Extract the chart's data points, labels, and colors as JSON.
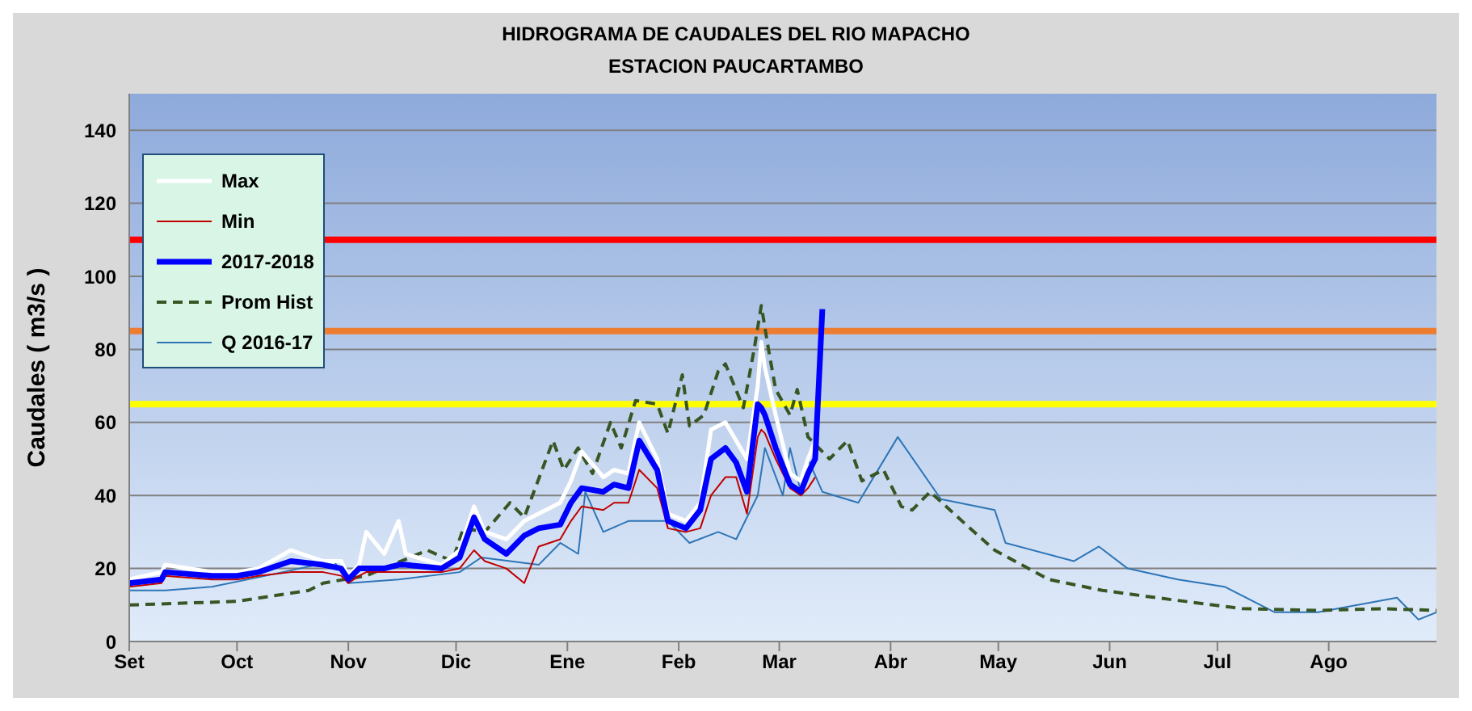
{
  "chart_data": {
    "type": "line",
    "title": "HIDROGRAMA DE CAUDALES DEL RIO  MAPACHO",
    "subtitle": "ESTACION  PAUCARTAMBO",
    "ylabel": "Caudales ( m3/s )",
    "xlim": [
      "2017-09-01",
      "2018-08-31"
    ],
    "xticks": [
      {
        "value": "2017-09-01",
        "label": "Set"
      },
      {
        "value": "2017-10-01",
        "label": "Oct"
      },
      {
        "value": "2017-11-01",
        "label": "Nov"
      },
      {
        "value": "2017-12-01",
        "label": "Dic"
      },
      {
        "value": "2018-01-01",
        "label": "Ene"
      },
      {
        "value": "2018-02-01",
        "label": "Feb"
      },
      {
        "value": "2018-03-01",
        "label": "Mar"
      },
      {
        "value": "2018-04-01",
        "label": "Abr"
      },
      {
        "value": "2018-05-01",
        "label": "May"
      },
      {
        "value": "2018-06-01",
        "label": "Jun"
      },
      {
        "value": "2018-07-01",
        "label": "Jul"
      },
      {
        "value": "2018-08-01",
        "label": "Ago"
      }
    ],
    "ylim": [
      0,
      150
    ],
    "yticks": [
      0,
      20,
      40,
      60,
      80,
      100,
      120,
      140
    ],
    "grid": "y",
    "legend": "top left",
    "marker": "none",
    "line_style": "solid",
    "ref_lines": [
      {
        "axis": "y",
        "value": 110,
        "color": "#ff0000"
      },
      {
        "axis": "y",
        "value": 85,
        "color": "#ed7d31"
      },
      {
        "axis": "y",
        "value": 65,
        "color": "#ffff00"
      }
    ],
    "series": [
      {
        "name": "Max",
        "color": "#ffffff",
        "x": [
          "2017-09-01",
          "2017-09-10",
          "2017-09-11",
          "2017-09-24",
          "2017-10-01",
          "2017-10-07",
          "2017-10-16",
          "2017-10-25",
          "2017-10-30",
          "2017-11-01",
          "2017-11-04",
          "2017-11-06",
          "2017-11-11",
          "2017-11-15",
          "2017-11-17",
          "2017-11-27",
          "2017-12-02",
          "2017-12-06",
          "2017-12-09",
          "2017-12-15",
          "2017-12-20",
          "2017-12-24",
          "2017-12-30",
          "2018-01-02",
          "2018-01-05",
          "2018-01-11",
          "2018-01-14",
          "2018-01-18",
          "2018-01-21",
          "2018-01-26",
          "2018-01-29",
          "2018-02-03",
          "2018-02-07",
          "2018-02-10",
          "2018-02-14",
          "2018-02-17",
          "2018-02-20",
          "2018-02-23",
          "2018-02-24",
          "2018-02-25",
          "2018-02-28",
          "2018-03-04",
          "2018-03-07",
          "2018-03-09",
          "2018-03-11"
        ],
        "values": [
          17,
          19,
          21,
          19,
          19,
          20,
          25,
          22,
          22,
          18,
          21,
          30,
          24,
          33,
          24,
          21,
          25,
          37,
          30,
          28,
          33,
          35,
          38,
          44,
          52,
          45,
          47,
          46,
          60,
          50,
          35,
          33,
          38,
          58,
          60,
          55,
          50,
          70,
          82,
          75,
          62,
          46,
          44,
          50,
          55
        ]
      },
      {
        "name": "Min",
        "color": "#c00000",
        "x": [
          "2017-09-01",
          "2017-09-10",
          "2017-09-11",
          "2017-09-24",
          "2017-10-01",
          "2017-10-07",
          "2017-10-16",
          "2017-10-25",
          "2017-10-30",
          "2017-11-01",
          "2017-11-04",
          "2017-11-06",
          "2017-11-11",
          "2017-11-15",
          "2017-11-17",
          "2017-11-27",
          "2017-12-02",
          "2017-12-06",
          "2017-12-09",
          "2017-12-15",
          "2017-12-20",
          "2017-12-24",
          "2017-12-30",
          "2018-01-02",
          "2018-01-05",
          "2018-01-11",
          "2018-01-14",
          "2018-01-18",
          "2018-01-21",
          "2018-01-26",
          "2018-01-29",
          "2018-02-03",
          "2018-02-07",
          "2018-02-10",
          "2018-02-14",
          "2018-02-17",
          "2018-02-20",
          "2018-02-23",
          "2018-02-24",
          "2018-02-25",
          "2018-02-28",
          "2018-03-04",
          "2018-03-07",
          "2018-03-09",
          "2018-03-11"
        ],
        "values": [
          15,
          16,
          18,
          17,
          17,
          18,
          19,
          19,
          18,
          16,
          18,
          19,
          19,
          19,
          19,
          19,
          20,
          25,
          22,
          20,
          16,
          26,
          28,
          33,
          37,
          36,
          38,
          38,
          47,
          42,
          31,
          30,
          31,
          40,
          45,
          45,
          35,
          56,
          58,
          57,
          50,
          42,
          40,
          42,
          45
        ]
      },
      {
        "name": "2017-2018",
        "color": "#0000ff",
        "x": [
          "2017-09-01",
          "2017-09-10",
          "2017-09-11",
          "2017-09-24",
          "2017-10-01",
          "2017-10-07",
          "2017-10-16",
          "2017-10-25",
          "2017-10-30",
          "2017-11-01",
          "2017-11-04",
          "2017-11-06",
          "2017-11-11",
          "2017-11-15",
          "2017-11-17",
          "2017-11-27",
          "2017-12-02",
          "2017-12-06",
          "2017-12-09",
          "2017-12-15",
          "2017-12-20",
          "2017-12-24",
          "2017-12-30",
          "2018-01-02",
          "2018-01-05",
          "2018-01-11",
          "2018-01-14",
          "2018-01-18",
          "2018-01-21",
          "2018-01-26",
          "2018-01-29",
          "2018-02-03",
          "2018-02-07",
          "2018-02-10",
          "2018-02-14",
          "2018-02-17",
          "2018-02-20",
          "2018-02-23",
          "2018-02-24",
          "2018-02-25",
          "2018-02-28",
          "2018-03-04",
          "2018-03-07",
          "2018-03-09",
          "2018-03-11",
          "2018-03-13"
        ],
        "values": [
          16,
          17,
          19,
          18,
          18,
          19,
          22,
          21,
          20,
          17,
          20,
          20,
          20,
          21,
          21,
          20,
          23,
          34,
          28,
          24,
          29,
          31,
          32,
          38,
          42,
          41,
          43,
          42,
          55,
          47,
          33,
          31,
          36,
          50,
          53,
          49,
          41,
          65,
          64,
          62,
          53,
          43,
          41,
          46,
          50,
          91
        ]
      },
      {
        "name": "Prom Hist",
        "color": "#375623",
        "line_style": "dashed",
        "x": [
          "2017-09-01",
          "2017-10-01",
          "2017-10-21",
          "2017-10-25",
          "2017-11-06",
          "2017-11-23",
          "2017-11-30",
          "2017-12-03",
          "2017-12-09",
          "2017-12-16",
          "2017-12-20",
          "2017-12-28",
          "2017-12-31",
          "2018-01-04",
          "2018-01-08",
          "2018-01-13",
          "2018-01-16",
          "2018-01-20",
          "2018-01-26",
          "2018-01-29",
          "2018-02-02",
          "2018-02-04",
          "2018-02-08",
          "2018-02-12",
          "2018-02-14",
          "2018-02-19",
          "2018-02-22",
          "2018-02-24",
          "2018-02-26",
          "2018-02-28",
          "2018-03-04",
          "2018-03-06",
          "2018-03-09",
          "2018-03-15",
          "2018-03-20",
          "2018-03-24",
          "2018-03-30",
          "2018-04-04",
          "2018-04-07",
          "2018-04-12",
          "2018-04-22",
          "2018-04-30",
          "2018-05-15",
          "2018-05-30",
          "2018-06-14",
          "2018-07-08",
          "2018-07-29",
          "2018-08-16",
          "2018-08-31"
        ],
        "values": [
          10,
          11,
          14,
          16,
          18,
          25,
          22,
          31,
          30,
          38,
          34,
          55,
          47,
          53,
          46,
          60,
          53,
          66,
          65,
          57,
          73,
          59,
          62,
          74,
          76,
          64,
          80,
          92,
          80,
          69,
          62,
          69,
          56,
          50,
          55,
          44,
          47,
          37,
          36,
          41,
          32,
          25,
          17,
          14,
          12,
          9,
          8.5,
          9,
          8.5
        ]
      },
      {
        "name": "Q 2016-17",
        "color": "#2e75b6",
        "x": [
          "2017-09-01",
          "2017-09-11",
          "2017-09-24",
          "2017-10-09",
          "2017-10-28",
          "2017-11-01",
          "2017-11-15",
          "2017-12-02",
          "2017-12-08",
          "2017-12-24",
          "2017-12-30",
          "2018-01-04",
          "2018-01-06",
          "2018-01-11",
          "2018-01-18",
          "2018-01-29",
          "2018-02-04",
          "2018-02-12",
          "2018-02-17",
          "2018-02-23",
          "2018-02-25",
          "2018-03-02",
          "2018-03-04",
          "2018-03-07",
          "2018-03-09",
          "2018-03-13",
          "2018-03-23",
          "2018-04-03",
          "2018-04-15",
          "2018-04-30",
          "2018-05-03",
          "2018-05-22",
          "2018-05-29",
          "2018-06-06",
          "2018-06-20",
          "2018-07-03",
          "2018-07-17",
          "2018-07-29",
          "2018-08-20",
          "2018-08-26",
          "2018-08-31"
        ],
        "values": [
          14,
          14,
          15,
          18,
          22,
          16,
          17,
          19,
          23,
          21,
          27,
          24,
          41,
          30,
          33,
          33,
          27,
          30,
          28,
          40,
          53,
          40,
          53,
          41,
          50,
          41,
          38,
          56,
          39,
          36,
          27,
          22,
          26,
          20,
          17,
          15,
          8,
          8,
          12,
          6,
          8
        ]
      }
    ]
  }
}
